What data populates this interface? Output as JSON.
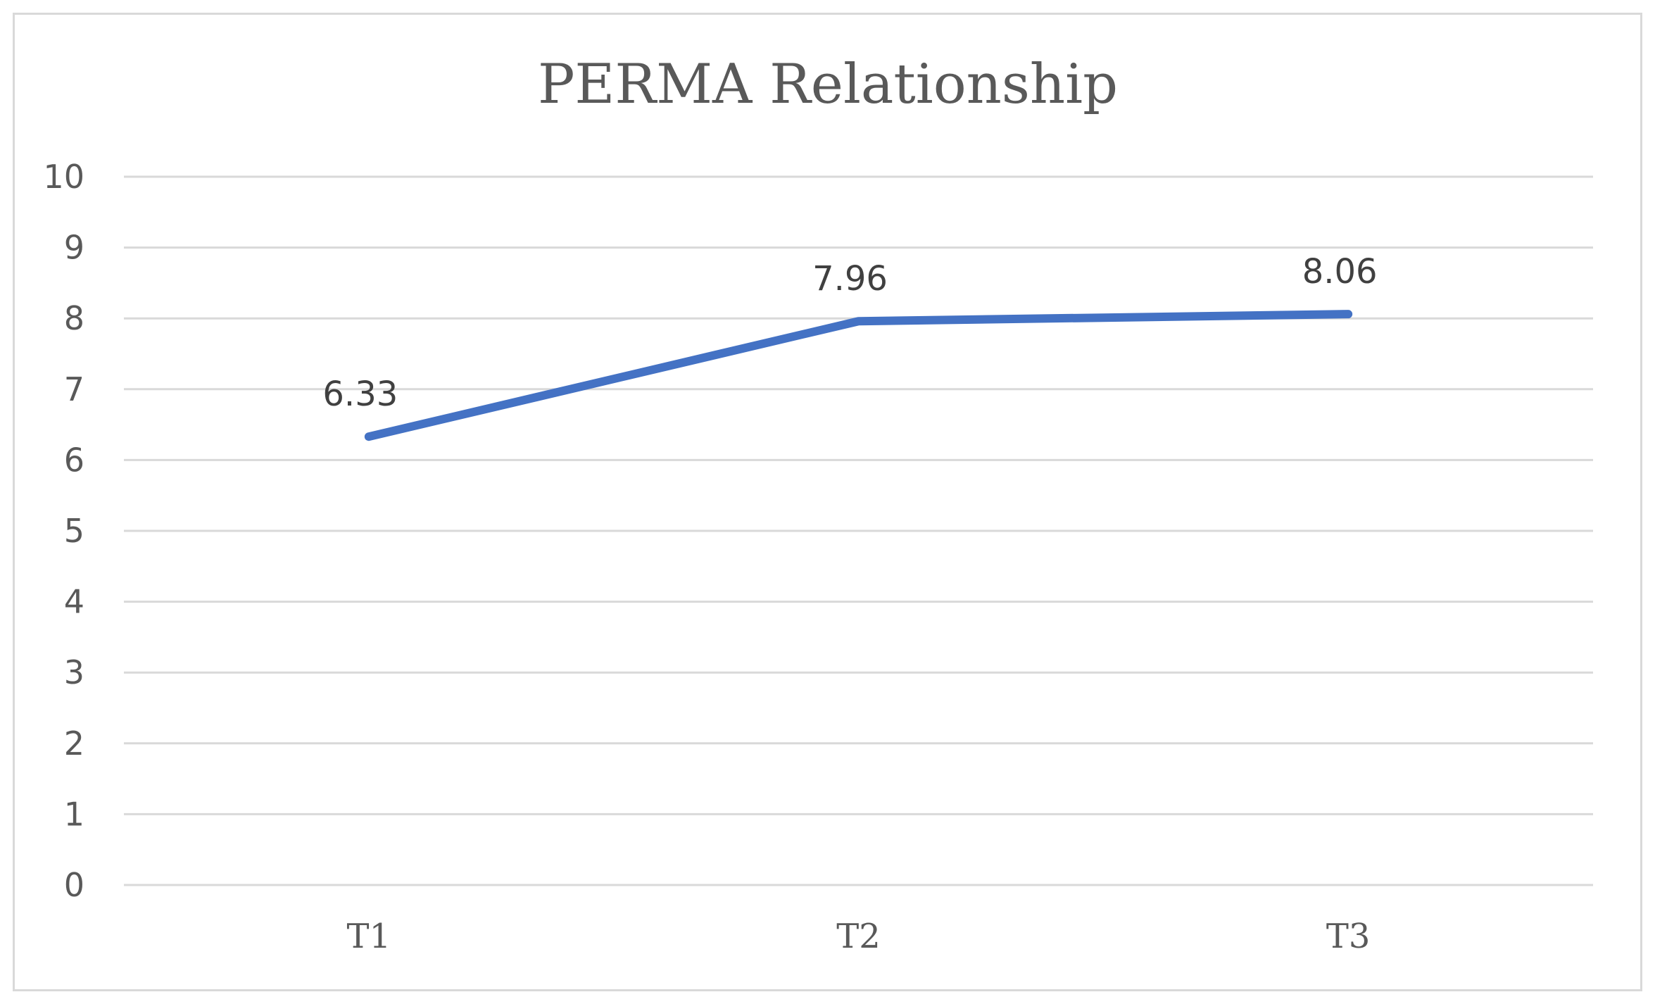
{
  "chart_data": {
    "type": "line",
    "title": "PERMA Relationship",
    "categories": [
      "T1",
      "T2",
      "T3"
    ],
    "series": [
      {
        "values": [
          6.33,
          7.96,
          8.06
        ],
        "color": "#4472c4"
      }
    ],
    "data_labels": [
      "6.33",
      "7.96",
      "8.06"
    ],
    "ylim": [
      0,
      10
    ],
    "yticks": [
      0,
      1,
      2,
      3,
      4,
      5,
      6,
      7,
      8,
      9,
      10
    ],
    "grid": true,
    "gridline_color": "#d9d9d9",
    "legend": "none",
    "xlabel": "",
    "ylabel": ""
  }
}
